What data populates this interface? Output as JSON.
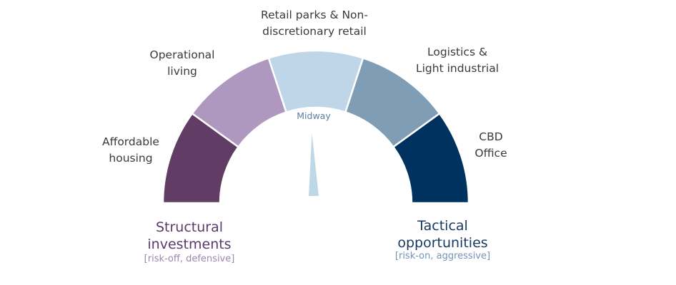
{
  "segments": [
    {
      "lines": [
        "Affordable",
        "housing"
      ],
      "color": "#613d66"
    },
    {
      "lines": [
        "Operational",
        "living"
      ],
      "color": "#ae98bf"
    },
    {
      "lines": [
        "Retail parks & Non-",
        "discretionary retail"
      ],
      "color": "#bfd5e8"
    },
    {
      "lines": [
        "Logistics &",
        "Light industrial"
      ],
      "color": "#7f9db5"
    },
    {
      "lines": [
        "CBD",
        "Office"
      ],
      "color": "#00325f"
    }
  ],
  "needle": {
    "label": "Midway",
    "color": "#bfd8e8"
  },
  "left_pole": {
    "title_lines": [
      "Structural",
      "investments"
    ],
    "subtitle": "[risk-off, defensive]"
  },
  "right_pole": {
    "title_lines": [
      "Tactical",
      "opportunities"
    ],
    "subtitle": "[risk-on, aggressive]"
  }
}
